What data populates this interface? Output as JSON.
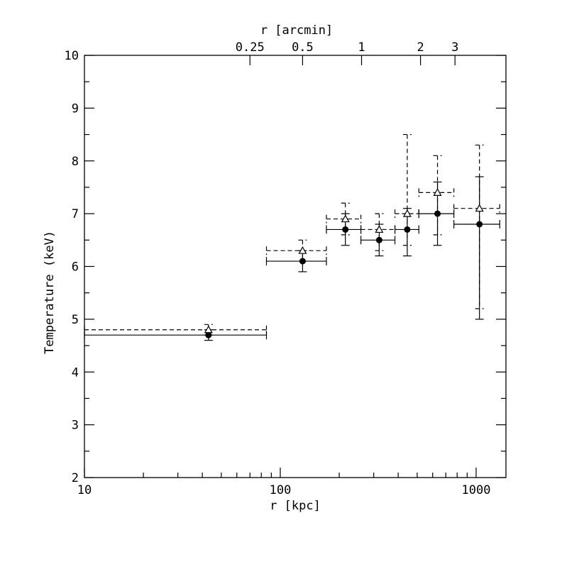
{
  "chart_data": {
    "type": "scatter",
    "title": "",
    "xlabel": "r [kpc]",
    "x2label": "r [arcmin]",
    "ylabel": "Temperature (keV)",
    "xscale": "log",
    "xlim": [
      10,
      1420
    ],
    "ylim": [
      2,
      10
    ],
    "grid": false,
    "x_ticks": [
      {
        "value": 10,
        "label": "10"
      },
      {
        "value": 100,
        "label": "100"
      },
      {
        "value": 1000,
        "label": "1000"
      }
    ],
    "x2_ticks": [
      {
        "value": 70,
        "label": "0.25"
      },
      {
        "value": 130,
        "label": "0.5"
      },
      {
        "value": 260,
        "label": "1"
      },
      {
        "value": 520,
        "label": "2"
      },
      {
        "value": 780,
        "label": "3"
      }
    ],
    "y_ticks": [
      {
        "value": 2,
        "label": "2"
      },
      {
        "value": 3,
        "label": "3"
      },
      {
        "value": 4,
        "label": "4"
      },
      {
        "value": 5,
        "label": "5"
      },
      {
        "value": 6,
        "label": "6"
      },
      {
        "value": 7,
        "label": "7"
      },
      {
        "value": 8,
        "label": "8"
      },
      {
        "value": 9,
        "label": "9"
      },
      {
        "value": 10,
        "label": "10"
      }
    ],
    "series": [
      {
        "marker": "filled-circle",
        "line_style": "solid",
        "points": [
          {
            "x": 43,
            "x_lo": 10,
            "x_hi": 85,
            "y": 4.7,
            "y_lo": 4.6,
            "y_hi": 4.8
          },
          {
            "x": 130,
            "x_lo": 85,
            "x_hi": 172,
            "y": 6.1,
            "y_lo": 5.9,
            "y_hi": 6.3
          },
          {
            "x": 215,
            "x_lo": 172,
            "x_hi": 258,
            "y": 6.7,
            "y_lo": 6.4,
            "y_hi": 7.0
          },
          {
            "x": 320,
            "x_lo": 258,
            "x_hi": 385,
            "y": 6.5,
            "y_lo": 6.2,
            "y_hi": 6.8
          },
          {
            "x": 445,
            "x_lo": 385,
            "x_hi": 510,
            "y": 6.7,
            "y_lo": 6.2,
            "y_hi": 7.1
          },
          {
            "x": 635,
            "x_lo": 510,
            "x_hi": 770,
            "y": 7.0,
            "y_lo": 6.4,
            "y_hi": 7.6
          },
          {
            "x": 1040,
            "x_lo": 770,
            "x_hi": 1320,
            "y": 6.8,
            "y_lo": 5.0,
            "y_hi": 7.7
          }
        ]
      },
      {
        "marker": "open-triangle",
        "line_style": "dashed",
        "points": [
          {
            "x": 43,
            "x_lo": 10,
            "x_hi": 85,
            "y": 4.8,
            "y_lo": 4.7,
            "y_hi": 4.9
          },
          {
            "x": 130,
            "x_lo": 85,
            "x_hi": 172,
            "y": 6.3,
            "y_lo": 6.1,
            "y_hi": 6.5
          },
          {
            "x": 215,
            "x_lo": 172,
            "x_hi": 258,
            "y": 6.9,
            "y_lo": 6.6,
            "y_hi": 7.2
          },
          {
            "x": 320,
            "x_lo": 258,
            "x_hi": 385,
            "y": 6.7,
            "y_lo": 6.3,
            "y_hi": 7.0
          },
          {
            "x": 445,
            "x_lo": 385,
            "x_hi": 510,
            "y": 7.0,
            "y_lo": 6.4,
            "y_hi": 8.5
          },
          {
            "x": 635,
            "x_lo": 510,
            "x_hi": 770,
            "y": 7.4,
            "y_lo": 6.6,
            "y_hi": 8.1
          },
          {
            "x": 1040,
            "x_lo": 770,
            "x_hi": 1320,
            "y": 7.1,
            "y_lo": 5.2,
            "y_hi": 8.3
          }
        ]
      }
    ]
  }
}
